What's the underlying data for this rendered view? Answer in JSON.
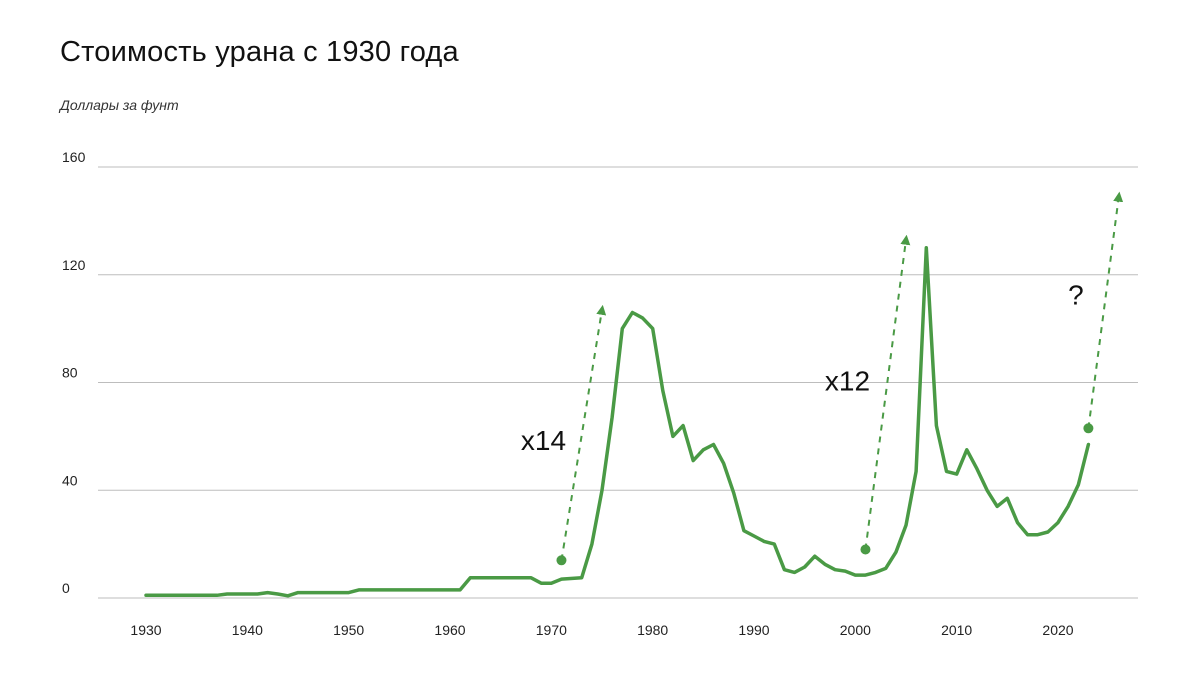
{
  "chart_data": {
    "type": "line",
    "title": "Стоимость урана с 1930 года",
    "ylabel": "Доллары за фунт",
    "xlabel": "",
    "xlim": [
      1930,
      2023
    ],
    "ylim": [
      0,
      160
    ],
    "x_ticks": [
      1930,
      1940,
      1950,
      1960,
      1970,
      1980,
      1990,
      2000,
      2010,
      2020
    ],
    "y_ticks": [
      0,
      40,
      80,
      120,
      160
    ],
    "grid": "horizontal",
    "colors": {
      "line": "#4a9a45",
      "grid": "#bdbdbd"
    },
    "series": [
      {
        "x": [
          1930,
          1937,
          1938,
          1941,
          1942,
          1943,
          1944,
          1945,
          1950,
          1951,
          1961,
          1962,
          1968,
          1969,
          1970,
          1971,
          1973,
          1974,
          1975,
          1976,
          1977,
          1978,
          1979,
          1980,
          1981,
          1982,
          1983,
          1984,
          1985,
          1986,
          1987,
          1988,
          1989,
          1990,
          1991,
          1992,
          1993,
          1994,
          1995,
          1996,
          1997,
          1998,
          1999,
          2000,
          2001,
          2002,
          2003,
          2004,
          2005,
          2006,
          2007,
          2008,
          2009,
          2010,
          2011,
          2012,
          2013,
          2014,
          2015,
          2016,
          2017,
          2018,
          2019,
          2020,
          2021,
          2022,
          2023
        ],
        "values": [
          1,
          1,
          1.5,
          1.5,
          2,
          1.5,
          0.8,
          2,
          2,
          3,
          3,
          7.5,
          7.5,
          5.5,
          5.5,
          7,
          7.5,
          20,
          40,
          67,
          100,
          106,
          104,
          100,
          77,
          60,
          64,
          51,
          55,
          57,
          50,
          39,
          25,
          23,
          21,
          20,
          10.5,
          9.5,
          11.5,
          15.5,
          12.5,
          10.5,
          10,
          8.5,
          8.5,
          9.5,
          11,
          17,
          27,
          47,
          130,
          64,
          47,
          46,
          55,
          48,
          40,
          34,
          37,
          28,
          23.5,
          23.5,
          24.5,
          28,
          34,
          42,
          57
        ]
      }
    ],
    "annotations": [
      {
        "text": "x14",
        "x": 1971,
        "y": 14,
        "arrow_to": [
          1975,
          107
        ],
        "label_at": [
          1967,
          55
        ]
      },
      {
        "text": "x12",
        "x": 2001,
        "y": 18,
        "arrow_to": [
          2005,
          133
        ],
        "label_at": [
          1997,
          77
        ]
      },
      {
        "text": "?",
        "x": 2023,
        "y": 63,
        "arrow_to": [
          2026,
          149
        ],
        "label_at": [
          2021,
          109
        ]
      }
    ]
  }
}
